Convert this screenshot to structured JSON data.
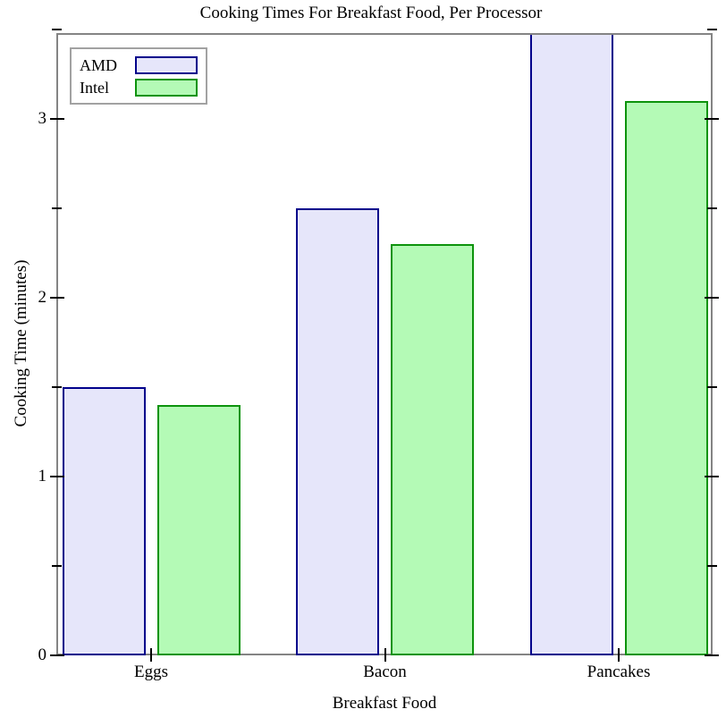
{
  "chart_data": {
    "type": "bar",
    "title": "Cooking Times For Breakfast Food, Per Processor",
    "xlabel": "Breakfast Food",
    "ylabel": "Cooking Time (minutes)",
    "categories": [
      "Eggs",
      "Bacon",
      "Pancakes"
    ],
    "series": [
      {
        "name": "AMD",
        "values": [
          1.5,
          2.5,
          3.5
        ],
        "fill": "#e6e6fa",
        "border": "#00008b"
      },
      {
        "name": "Intel",
        "values": [
          1.4,
          2.3,
          3.1
        ],
        "fill": "#b4fab6",
        "border": "#0c930c"
      }
    ],
    "ylim": [
      0,
      3.5
    ],
    "yticks": [
      0,
      1,
      2,
      3
    ],
    "ytick_minor_step": 0.5,
    "grid": false,
    "legend_position": "top-left",
    "frame_color": "#848484",
    "tick_color": "#000000",
    "text_color": "#000000",
    "background_color": "#ffffff"
  }
}
